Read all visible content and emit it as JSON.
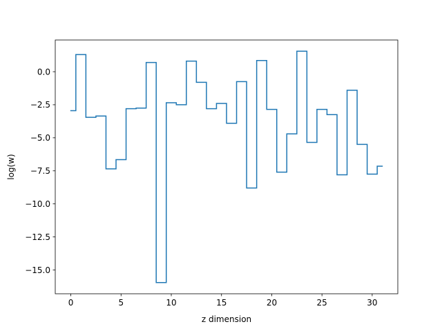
{
  "chart_data": {
    "type": "line",
    "step": "mid",
    "title": "",
    "xlabel": "z dimension",
    "ylabel": "log(w)",
    "xlim": [
      -1.55,
      32.55
    ],
    "ylim": [
      -16.8,
      2.4
    ],
    "xticks": [
      0,
      5,
      10,
      15,
      20,
      25,
      30
    ],
    "yticks": [
      0.0,
      -2.5,
      -5.0,
      -7.5,
      -10.0,
      -12.5,
      -15.0
    ],
    "xtick_labels": [
      "0",
      "5",
      "10",
      "15",
      "20",
      "25",
      "30"
    ],
    "ytick_labels": [
      "0.0",
      "−2.5",
      "−5.0",
      "−7.5",
      "−10.0",
      "−12.5",
      "−15.0"
    ],
    "grid": false,
    "series": [
      {
        "color": "#1f77b4",
        "x": [
          0,
          1,
          2,
          3,
          4,
          5,
          6,
          7,
          8,
          9,
          10,
          11,
          12,
          13,
          14,
          15,
          16,
          17,
          18,
          19,
          20,
          21,
          22,
          23,
          24,
          25,
          26,
          27,
          28,
          29,
          30,
          31
        ],
        "y": [
          -2.95,
          1.3,
          -3.45,
          -3.35,
          -7.35,
          -6.65,
          -2.8,
          -2.75,
          0.7,
          -15.95,
          -2.35,
          -2.5,
          0.8,
          -0.8,
          -2.8,
          -2.4,
          -3.9,
          -0.75,
          -8.8,
          0.85,
          -2.85,
          -7.6,
          -4.7,
          1.55,
          -5.35,
          -2.85,
          -3.25,
          -7.8,
          -1.4,
          -5.5,
          -7.75,
          -7.15
        ]
      }
    ]
  }
}
